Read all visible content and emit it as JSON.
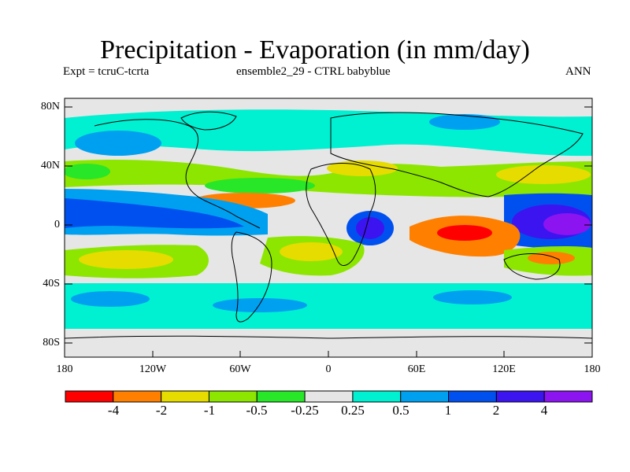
{
  "title": "Precipitation - Evaporation (in mm/day)",
  "subtitle_left": "Expt = tcruC-tcrta",
  "subtitle_center": "ensemble2_29 - CTRL babyblue",
  "subtitle_right": "ANN",
  "lat_labels": [
    "80N",
    "40N",
    "0",
    "40S",
    "80S"
  ],
  "lon_labels": [
    "180",
    "120W",
    "60W",
    "0",
    "60E",
    "120E",
    "180"
  ],
  "colorbar": {
    "colors": [
      "#ff0000",
      "#ff8000",
      "#e6dc00",
      "#8ce600",
      "#28e628",
      "#e6e6e6",
      "#00f0d2",
      "#00a0f0",
      "#0050f0",
      "#3c14f0",
      "#8c14f0"
    ],
    "labels": [
      "-4",
      "-2",
      "-1",
      "-0.5",
      "-0.25",
      "0.25",
      "0.5",
      "1",
      "2",
      "4"
    ]
  }
}
